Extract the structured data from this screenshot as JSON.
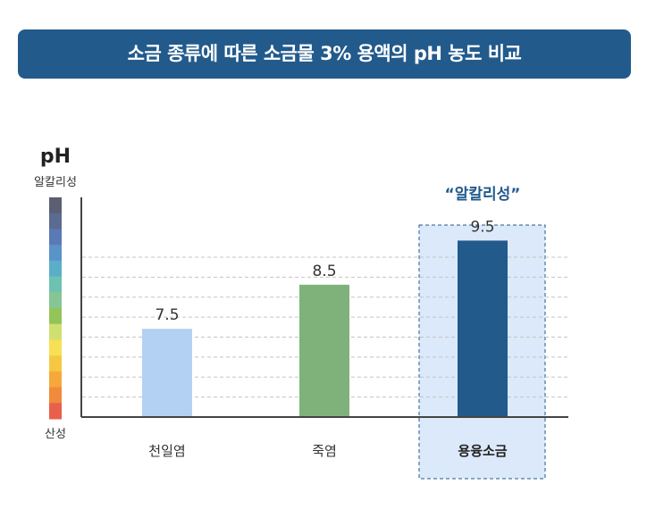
{
  "title": "소금 종류에 따른 소금물 3% 용액의 pH 농도 비교",
  "chart_data": {
    "type": "bar",
    "ylabel": "pH",
    "ylim": [
      5.5,
      10.5
    ],
    "scale_top_label": "알칼리성",
    "scale_bottom_label": "산성",
    "categories": [
      "천일염",
      "죽염",
      "용융소금"
    ],
    "values": [
      7.5,
      8.5,
      9.5
    ],
    "value_labels": [
      "7.5",
      "8.5",
      "9.5"
    ],
    "bar_colors": [
      "#b3d1f2",
      "#7fb27a",
      "#225a8c"
    ],
    "highlight_index": 2,
    "highlight_label": "“알칼리성”",
    "highlight_color": "#dce9fa",
    "scale_colors": [
      "#5a5f72",
      "#5b6b91",
      "#5a79b5",
      "#5a93c8",
      "#5aafc8",
      "#6dc2b2",
      "#86c694",
      "#94c458",
      "#cfe070",
      "#f7e054",
      "#f6c842",
      "#f5a93a",
      "#f08a3c",
      "#e9604a"
    ],
    "grid": true
  }
}
